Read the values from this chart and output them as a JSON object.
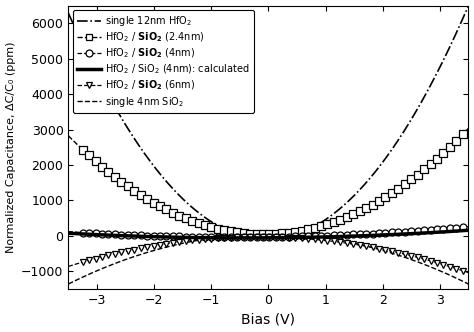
{
  "title": "",
  "xlabel": "Bias (V)",
  "ylabel": "Normalized Capacitance, ΔC/C₀ (ppm)",
  "xlim": [
    -3.5,
    3.5
  ],
  "ylim": [
    -1500,
    6500
  ],
  "yticks": [
    -1000,
    0,
    1000,
    2000,
    3000,
    4000,
    5000,
    6000
  ],
  "xticks": [
    -3,
    -2,
    -1,
    0,
    1,
    2,
    3
  ],
  "background_color": "#ffffff",
  "hfo2_12nm": {
    "a": 530,
    "b": 30,
    "c": -100,
    "style": "-.",
    "lw": 1.2
  },
  "sio2_2p4nm": {
    "a": 235,
    "b": 30,
    "c": 50,
    "style": "--",
    "lw": 1.0
  },
  "sio2_4nm_exp": {
    "a": 18,
    "b": 20,
    "c": -30,
    "style": "--",
    "lw": 0.9
  },
  "sio2_4nm_calc": {
    "a": 14,
    "b": 12,
    "c": -55,
    "style": "-",
    "lw": 2.5
  },
  "sio2_6nm": {
    "a": -75,
    "b": -25,
    "c": -30,
    "style": "--",
    "lw": 0.9
  },
  "sio2_single": {
    "a": -115,
    "b": 0,
    "c": 50,
    "style": "--",
    "lw": 1.0
  },
  "n_markers": 60,
  "marker_x_start": -3.25,
  "marker_x_end": 3.4,
  "legend_labels_formatted": [
    "single 12nm HfO$_2$",
    "HfO$_2$ / $\\mathbf{SiO_2}$ (2.4nm)",
    "HfO$_2$ / $\\mathbf{SiO_2}$ (4nm)",
    "HfO$_2$ / SiO$_2$ (4nm): calculated",
    "HfO$_2$ / $\\mathbf{SiO_2}$ (6nm)",
    "single 4nm SiO$_2$"
  ]
}
